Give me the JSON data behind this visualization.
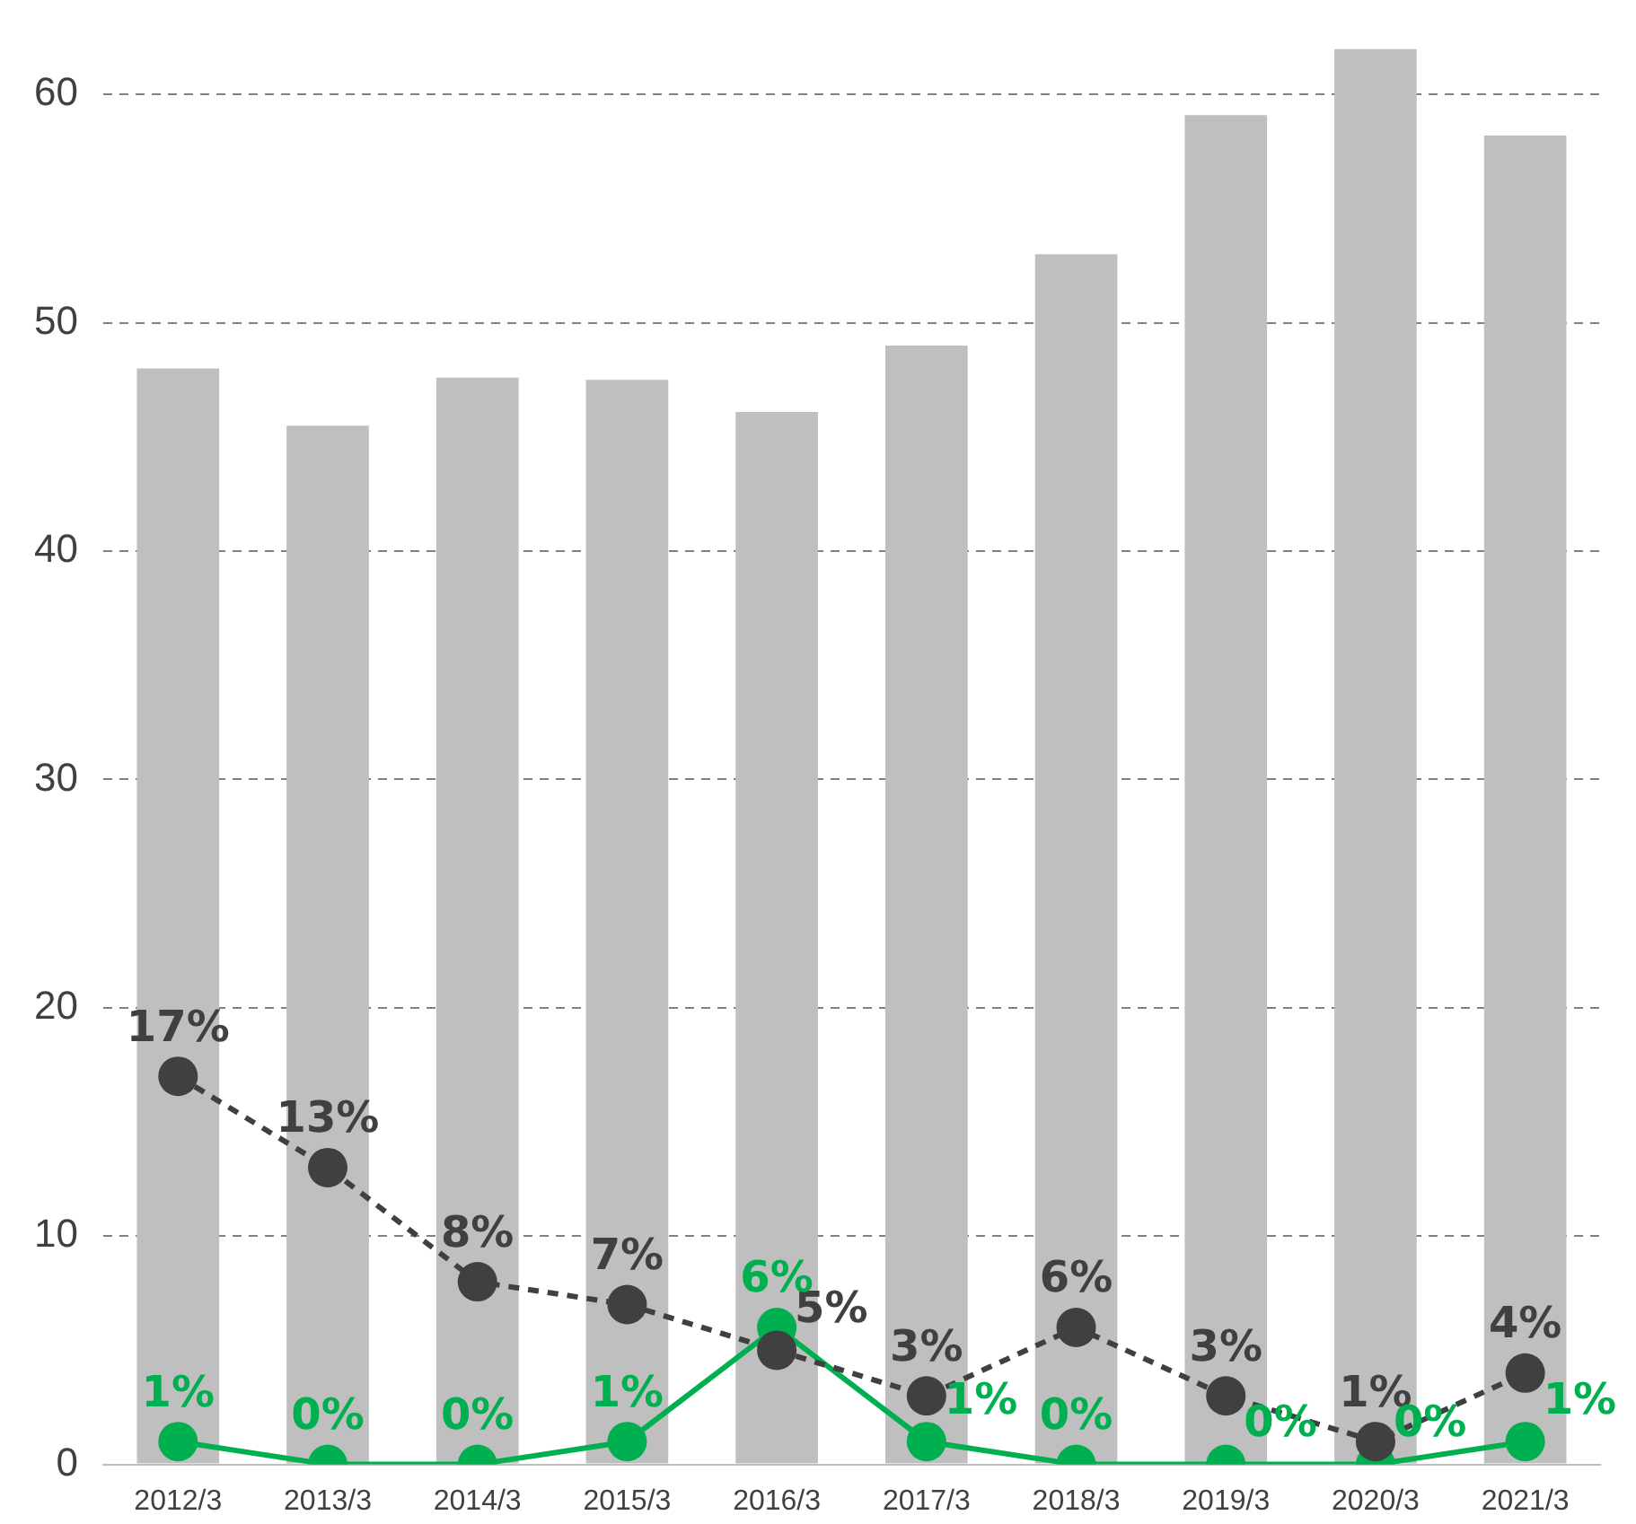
{
  "chart_data": {
    "type": "bar",
    "categories": [
      "2012/3",
      "2013/3",
      "2014/3",
      "2015/3",
      "2016/3",
      "2017/3",
      "2018/3",
      "2019/3",
      "2020/3",
      "2021/3"
    ],
    "series": [
      {
        "color": "#bfbfbf",
        "values": [
          48.0,
          45.5,
          47.6,
          47.5,
          46.1,
          49.0,
          53.0,
          59.1,
          62,
          58.2
        ]
      },
      {
        "type": "line",
        "color": "#404040",
        "line_style": "dashed",
        "marker": "circle",
        "values": [
          17,
          13,
          8,
          7,
          5,
          3,
          6,
          3,
          1,
          4
        ],
        "value_labels": [
          "17%",
          "13%",
          "8%",
          "7%",
          "5%",
          "3%",
          "6%",
          "3%",
          "1%",
          "4%"
        ]
      },
      {
        "type": "line",
        "color": "#00b050",
        "line_style": "solid",
        "marker": "circle",
        "values": [
          1,
          0,
          0,
          1,
          6,
          1,
          0,
          0,
          0,
          1
        ],
        "value_labels": [
          "1%",
          "0%",
          "0%",
          "1%",
          "6%",
          "1%",
          "0%",
          "0%",
          "0%",
          "1%"
        ]
      }
    ],
    "ylim": [
      0,
      62
    ],
    "yticks": [
      0,
      10,
      20,
      30,
      40,
      50,
      60
    ],
    "grid": "y",
    "legend": false
  }
}
